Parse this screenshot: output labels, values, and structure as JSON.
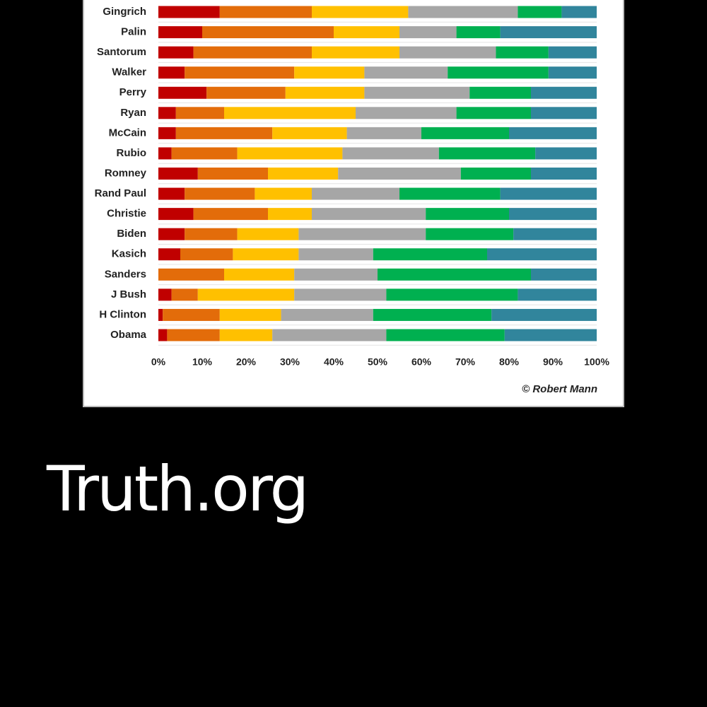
{
  "chart_data": {
    "type": "stacked-bar-horizontal",
    "categories": [
      "Gingrich",
      "Palin",
      "Santorum",
      "Walker",
      "Perry",
      "Ryan",
      "McCain",
      "Rubio",
      "Romney",
      "Rand Paul",
      "Christie",
      "Biden",
      "Kasich",
      "Sanders",
      "J Bush",
      "H Clinton",
      "Obama"
    ],
    "series": [
      {
        "color": "#c00000",
        "values": [
          14,
          10,
          8,
          6,
          11,
          4,
          4,
          3,
          9,
          6,
          8,
          6,
          5,
          0,
          3,
          1,
          2
        ]
      },
      {
        "color": "#e36c0a",
        "values": [
          21,
          30,
          27,
          25,
          18,
          11,
          22,
          15,
          16,
          16,
          17,
          12,
          12,
          15,
          6,
          13,
          12
        ]
      },
      {
        "color": "#ffc000",
        "values": [
          22,
          15,
          20,
          16,
          18,
          30,
          17,
          24,
          16,
          13,
          10,
          14,
          15,
          16,
          22,
          14,
          12
        ]
      },
      {
        "color": "#a6a6a6",
        "values": [
          25,
          13,
          22,
          19,
          24,
          23,
          17,
          22,
          28,
          20,
          26,
          29,
          17,
          19,
          21,
          21,
          26
        ]
      },
      {
        "color": "#00b050",
        "values": [
          10,
          10,
          12,
          23,
          14,
          17,
          20,
          22,
          16,
          23,
          19,
          20,
          26,
          35,
          30,
          27,
          27
        ]
      },
      {
        "color": "#31859c",
        "values": [
          8,
          22,
          11,
          11,
          15,
          15,
          20,
          14,
          15,
          22,
          20,
          19,
          25,
          15,
          18,
          24,
          21
        ]
      }
    ],
    "xlim": [
      0,
      100
    ],
    "xticks": [
      {
        "value": 0,
        "label": "0%"
      },
      {
        "value": 10,
        "label": "10%"
      },
      {
        "value": 20,
        "label": "20%"
      },
      {
        "value": 30,
        "label": "30%"
      },
      {
        "value": 40,
        "label": "40%"
      },
      {
        "value": 50,
        "label": "50%"
      },
      {
        "value": 60,
        "label": "60%"
      },
      {
        "value": 70,
        "label": "70%"
      },
      {
        "value": 80,
        "label": "80%"
      },
      {
        "value": 90,
        "label": "90%"
      },
      {
        "value": 100,
        "label": "100%"
      }
    ],
    "credit": "© Robert Mann"
  },
  "site": "Truth.org"
}
